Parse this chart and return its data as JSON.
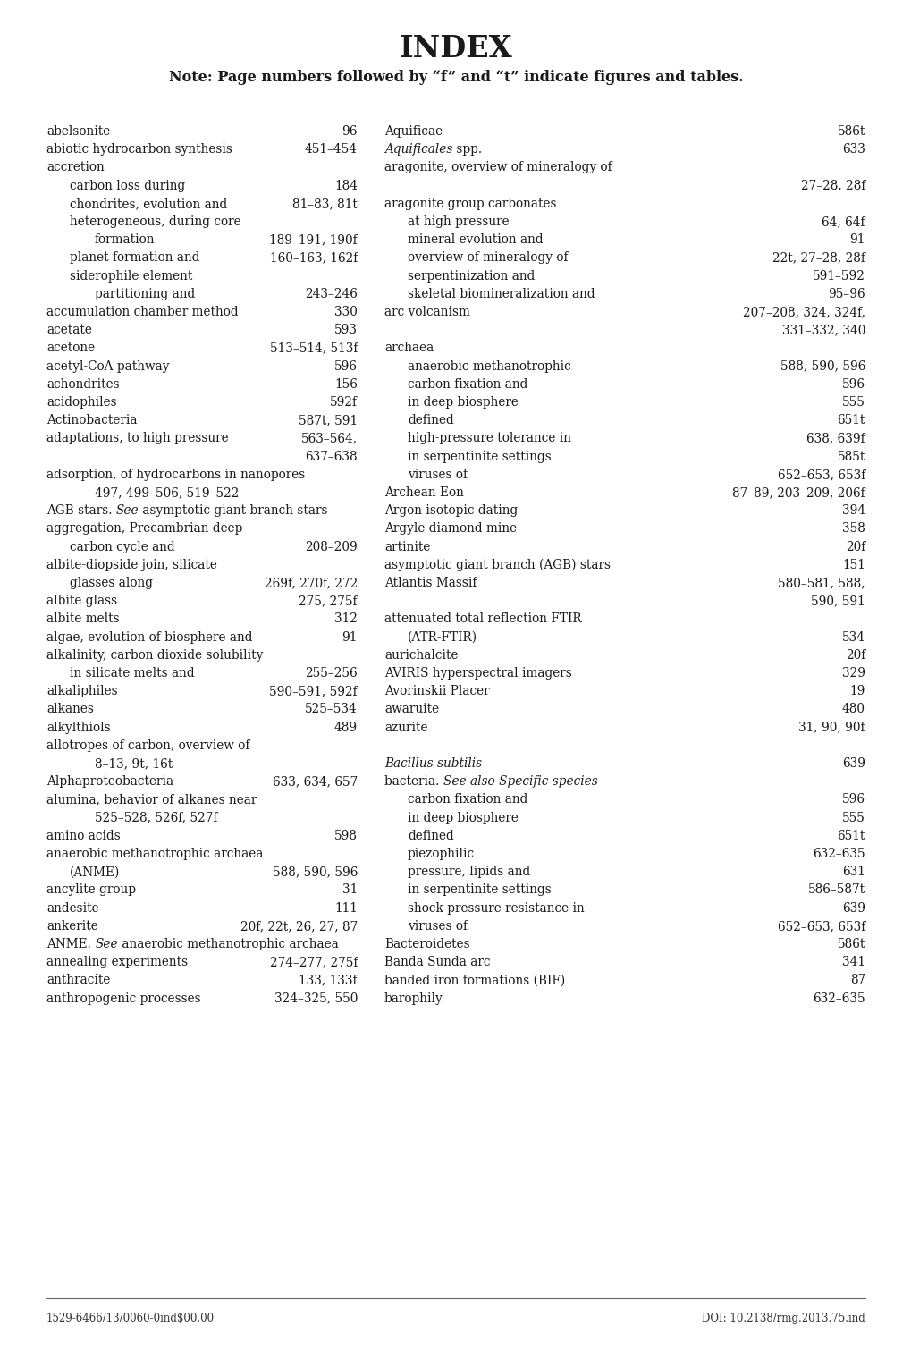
{
  "title": "INDEX",
  "subtitle": "Note: Page numbers followed by “f” and “t” indicate figures and tables.",
  "background_color": "#ffffff",
  "text_color": "#1a1a1a",
  "footer_left": "1529-6466/13/0060-0ind$00.00",
  "footer_right": "DOI: 10.2138/rmg.2013.75.ind",
  "left_column": [
    {
      "indent": 0,
      "text": "abelsonite",
      "page": "96"
    },
    {
      "indent": 0,
      "text": "abiotic hydrocarbon synthesis",
      "page": "451–454"
    },
    {
      "indent": 0,
      "text": "accretion",
      "page": ""
    },
    {
      "indent": 1,
      "text": "carbon loss during",
      "page": "184"
    },
    {
      "indent": 1,
      "text": "chondrites, evolution and",
      "page": "81–83, 81t"
    },
    {
      "indent": 1,
      "text": "heterogeneous, during core",
      "page": ""
    },
    {
      "indent": 2,
      "text": "formation",
      "page": "189–191, 190f"
    },
    {
      "indent": 1,
      "text": "planet formation and",
      "page": "160–163, 162f"
    },
    {
      "indent": 1,
      "text": "siderophile element",
      "page": ""
    },
    {
      "indent": 2,
      "text": "partitioning and",
      "page": "243–246"
    },
    {
      "indent": 0,
      "text": "accumulation chamber method",
      "page": "330"
    },
    {
      "indent": 0,
      "text": "acetate",
      "page": "593"
    },
    {
      "indent": 0,
      "text": "acetone",
      "page": "513–514, 513f"
    },
    {
      "indent": 0,
      "text": "acetyl-CoA pathway",
      "page": "596"
    },
    {
      "indent": 0,
      "text": "achondrites",
      "page": "156"
    },
    {
      "indent": 0,
      "text": "acidophiles",
      "page": "592f"
    },
    {
      "indent": 0,
      "text": "Actinobacteria",
      "page": "587t, 591"
    },
    {
      "indent": 0,
      "text": "adaptations, to high pressure",
      "page": "563–564,"
    },
    {
      "indent": 0,
      "text": "",
      "page": "637–638"
    },
    {
      "indent": 0,
      "text": "adsorption, of hydrocarbons in nanopores",
      "page": ""
    },
    {
      "indent": 2,
      "text": "497, 499–506, 519–522",
      "page": ""
    },
    {
      "indent": 0,
      "italic_parts": [
        {
          "text": "AGB stars. ",
          "italic": false
        },
        {
          "text": "See",
          "italic": true
        },
        {
          "text": " asymptotic giant branch stars",
          "italic": false
        }
      ],
      "page": ""
    },
    {
      "indent": 0,
      "text": "aggregation, Precambrian deep",
      "page": ""
    },
    {
      "indent": 1,
      "text": "carbon cycle and",
      "page": "208–209"
    },
    {
      "indent": 0,
      "text": "albite-diopside join, silicate",
      "page": ""
    },
    {
      "indent": 1,
      "text": "glasses along",
      "page": "269f, 270f, 272"
    },
    {
      "indent": 0,
      "text": "albite glass",
      "page": "275, 275f"
    },
    {
      "indent": 0,
      "text": "albite melts",
      "page": "312"
    },
    {
      "indent": 0,
      "text": "algae, evolution of biosphere and",
      "page": "91"
    },
    {
      "indent": 0,
      "text": "alkalinity, carbon dioxide solubility",
      "page": ""
    },
    {
      "indent": 1,
      "text": "in silicate melts and",
      "page": "255–256"
    },
    {
      "indent": 0,
      "text": "alkaliphiles",
      "page": "590–591, 592f"
    },
    {
      "indent": 0,
      "text": "alkanes",
      "page": "525–534"
    },
    {
      "indent": 0,
      "text": "alkylthiols",
      "page": "489"
    },
    {
      "indent": 0,
      "text": "allotropes of carbon, overview of",
      "page": ""
    },
    {
      "indent": 2,
      "text": "8–13, 9t, 16t",
      "page": ""
    },
    {
      "indent": 0,
      "text": "Alphaproteobacteria",
      "page": "633, 634, 657"
    },
    {
      "indent": 0,
      "text": "alumina, behavior of alkanes near",
      "page": ""
    },
    {
      "indent": 2,
      "text": "525–528, 526f, 527f",
      "page": ""
    },
    {
      "indent": 0,
      "text": "amino acids",
      "page": "598"
    },
    {
      "indent": 0,
      "text": "anaerobic methanotrophic archaea",
      "page": ""
    },
    {
      "indent": 1,
      "text": "(ANME)",
      "page": "588, 590, 596"
    },
    {
      "indent": 0,
      "text": "ancylite group",
      "page": "31"
    },
    {
      "indent": 0,
      "text": "andesite",
      "page": "111"
    },
    {
      "indent": 0,
      "text": "ankerite",
      "page": "20f, 22t, 26, 27, 87"
    },
    {
      "indent": 0,
      "italic_parts": [
        {
          "text": "ANME. ",
          "italic": false
        },
        {
          "text": "See",
          "italic": true
        },
        {
          "text": " anaerobic methanotrophic archaea",
          "italic": false
        }
      ],
      "page": ""
    },
    {
      "indent": 0,
      "text": "annealing experiments",
      "page": "274–277, 275f"
    },
    {
      "indent": 0,
      "text": "anthracite",
      "page": "133, 133f"
    },
    {
      "indent": 0,
      "text": "anthropogenic processes",
      "page": "324–325, 550"
    }
  ],
  "right_column": [
    {
      "indent": 0,
      "text": "Aquificae",
      "page": "586t"
    },
    {
      "indent": 0,
      "italic_parts": [
        {
          "text": "Aquificales",
          "italic": true
        },
        {
          "text": " spp.",
          "italic": false
        }
      ],
      "page": "633"
    },
    {
      "indent": 0,
      "text": "aragonite, overview of mineralogy of",
      "page": ""
    },
    {
      "indent": 0,
      "text": "",
      "page": "27–28, 28f"
    },
    {
      "indent": 0,
      "text": "aragonite group carbonates",
      "page": ""
    },
    {
      "indent": 1,
      "text": "at high pressure",
      "page": "64, 64f"
    },
    {
      "indent": 1,
      "text": "mineral evolution and",
      "page": "91"
    },
    {
      "indent": 1,
      "text": "overview of mineralogy of",
      "page": "22t, 27–28, 28f"
    },
    {
      "indent": 1,
      "text": "serpentinization and",
      "page": "591–592"
    },
    {
      "indent": 1,
      "text": "skeletal biomineralization and",
      "page": "95–96"
    },
    {
      "indent": 0,
      "text": "arc volcanism",
      "page": "207–208, 324, 324f,"
    },
    {
      "indent": 0,
      "text": "",
      "page": "331–332, 340"
    },
    {
      "indent": 0,
      "text": "archaea",
      "page": ""
    },
    {
      "indent": 1,
      "text": "anaerobic methanotrophic",
      "page": "588, 590, 596"
    },
    {
      "indent": 1,
      "text": "carbon fixation and",
      "page": "596"
    },
    {
      "indent": 1,
      "text": "in deep biosphere",
      "page": "555"
    },
    {
      "indent": 1,
      "text": "defined",
      "page": "651t"
    },
    {
      "indent": 1,
      "text": "high-pressure tolerance in",
      "page": "638, 639f"
    },
    {
      "indent": 1,
      "text": "in serpentinite settings",
      "page": "585t"
    },
    {
      "indent": 1,
      "text": "viruses of",
      "page": "652–653, 653f"
    },
    {
      "indent": 0,
      "text": "Archean Eon",
      "page": "87–89, 203–209, 206f"
    },
    {
      "indent": 0,
      "text": "Argon isotopic dating",
      "page": "394"
    },
    {
      "indent": 0,
      "text": "Argyle diamond mine",
      "page": "358"
    },
    {
      "indent": 0,
      "text": "artinite",
      "page": "20f"
    },
    {
      "indent": 0,
      "text": "asymptotic giant branch (AGB) stars",
      "page": "151"
    },
    {
      "indent": 0,
      "text": "Atlantis Massif",
      "page": "580–581, 588,"
    },
    {
      "indent": 0,
      "text": "",
      "page": "590, 591"
    },
    {
      "indent": 0,
      "text": "attenuated total reflection FTIR",
      "page": ""
    },
    {
      "indent": 1,
      "text": "(ATR-FTIR)",
      "page": "534"
    },
    {
      "indent": 0,
      "text": "aurichalcite",
      "page": "20f"
    },
    {
      "indent": 0,
      "text": "AVIRIS hyperspectral imagers",
      "page": "329"
    },
    {
      "indent": 0,
      "text": "Avorinskii Placer",
      "page": "19"
    },
    {
      "indent": 0,
      "text": "awaruite",
      "page": "480"
    },
    {
      "indent": 0,
      "text": "azurite",
      "page": "31, 90, 90f"
    },
    {
      "indent": 0,
      "text": "",
      "page": ""
    },
    {
      "indent": 0,
      "italic_parts": [
        {
          "text": "Bacillus subtilis",
          "italic": true
        }
      ],
      "page": "639"
    },
    {
      "indent": 0,
      "italic_parts": [
        {
          "text": "bacteria. ",
          "italic": false
        },
        {
          "text": "See also Specific species",
          "italic": true
        }
      ],
      "page": ""
    },
    {
      "indent": 1,
      "text": "carbon fixation and",
      "page": "596"
    },
    {
      "indent": 1,
      "text": "in deep biosphere",
      "page": "555"
    },
    {
      "indent": 1,
      "text": "defined",
      "page": "651t"
    },
    {
      "indent": 1,
      "text": "piezophilic",
      "page": "632–635"
    },
    {
      "indent": 1,
      "text": "pressure, lipids and",
      "page": "631"
    },
    {
      "indent": 1,
      "text": "in serpentinite settings",
      "page": "586–587t"
    },
    {
      "indent": 1,
      "text": "shock pressure resistance in",
      "page": "639"
    },
    {
      "indent": 1,
      "text": "viruses of",
      "page": "652–653, 653f"
    },
    {
      "indent": 0,
      "text": "Bacteroidetes",
      "page": "586t"
    },
    {
      "indent": 0,
      "text": "Banda Sunda arc",
      "page": "341"
    },
    {
      "indent": 0,
      "text": "banded iron formations (BIF)",
      "page": "87"
    },
    {
      "indent": 0,
      "text": "barophily",
      "page": "632–635"
    }
  ]
}
